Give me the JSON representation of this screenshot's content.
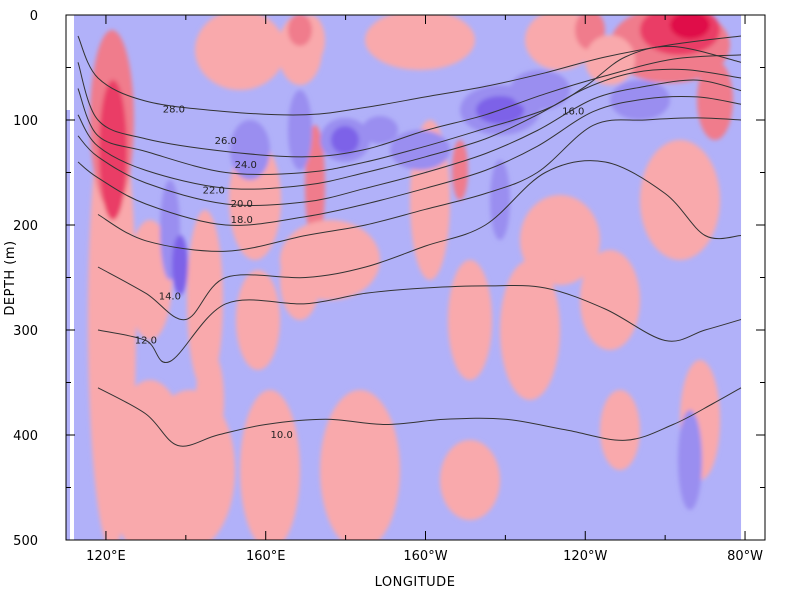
{
  "chart_data": {
    "type": "heatmap",
    "title": "",
    "xlabel": "LONGITUDE",
    "ylabel": "DEPTH (m)",
    "x_ticks": [
      {
        "label": "120°E",
        "lon": 120
      },
      {
        "label": "160°E",
        "lon": 160
      },
      {
        "label": "160°W",
        "lon": 200
      },
      {
        "label": "120°W",
        "lon": 240
      },
      {
        "label": "80°W",
        "lon": 280
      }
    ],
    "xlim": [
      110,
      285
    ],
    "y_ticks": [
      {
        "label": "0",
        "depth": 0
      },
      {
        "label": "100",
        "depth": 100
      },
      {
        "label": "200",
        "depth": 200
      },
      {
        "label": "300",
        "depth": 300
      },
      {
        "label": "400",
        "depth": 400
      },
      {
        "label": "500",
        "depth": 500
      }
    ],
    "ylim": [
      0,
      500
    ],
    "y_inverted": true,
    "data_lon_range": [
      112,
      279
    ],
    "colors": {
      "positive_light": "#f9a9ac",
      "positive_mid": "#f07c8c",
      "positive_strong": "#ea3e66",
      "positive_max": "#e0104a",
      "negative_light": "#b1b1f9",
      "negative_mid": "#9a8ef0",
      "negative_strong": "#7d62e8",
      "contour": "#333333"
    },
    "isotherms": [
      {
        "label": "28.0",
        "depths": [
          [
            113,
            20
          ],
          [
            118,
            60
          ],
          [
            130,
            82
          ],
          [
            150,
            92
          ],
          [
            170,
            95
          ],
          [
            185,
            88
          ],
          [
            200,
            78
          ],
          [
            215,
            68
          ],
          [
            230,
            55
          ],
          [
            245,
            40
          ],
          [
            262,
            28
          ],
          [
            279,
            20
          ]
        ],
        "label_at": [
          137,
          90
        ]
      },
      {
        "label": "26.0",
        "depths": [
          [
            113,
            45
          ],
          [
            118,
            100
          ],
          [
            130,
            118
          ],
          [
            150,
            130
          ],
          [
            170,
            135
          ],
          [
            185,
            128
          ],
          [
            200,
            110
          ],
          [
            215,
            95
          ],
          [
            230,
            75
          ],
          [
            245,
            58
          ],
          [
            262,
            42
          ],
          [
            279,
            38
          ]
        ],
        "label_at": [
          150,
          120
        ]
      },
      {
        "label": "24.0",
        "depths": [
          [
            113,
            70
          ],
          [
            118,
            115
          ],
          [
            130,
            130
          ],
          [
            150,
            150
          ],
          [
            170,
            150
          ],
          [
            185,
            140
          ],
          [
            200,
            125
          ],
          [
            215,
            108
          ],
          [
            230,
            90
          ],
          [
            240,
            68
          ],
          [
            250,
            40
          ],
          [
            262,
            30
          ],
          [
            279,
            45
          ]
        ],
        "label_at": [
          155,
          143
        ]
      },
      {
        "label": "22.0",
        "depths": [
          [
            113,
            95
          ],
          [
            118,
            125
          ],
          [
            130,
            148
          ],
          [
            150,
            165
          ],
          [
            170,
            162
          ],
          [
            185,
            150
          ],
          [
            200,
            135
          ],
          [
            215,
            118
          ],
          [
            228,
            95
          ],
          [
            240,
            70
          ],
          [
            252,
            55
          ],
          [
            265,
            52
          ],
          [
            279,
            60
          ]
        ],
        "label_at": [
          147,
          167
        ]
      },
      {
        "label": "20.0",
        "depths": [
          [
            113,
            115
          ],
          [
            118,
            135
          ],
          [
            130,
            160
          ],
          [
            150,
            180
          ],
          [
            170,
            178
          ],
          [
            185,
            165
          ],
          [
            200,
            150
          ],
          [
            215,
            132
          ],
          [
            228,
            110
          ],
          [
            242,
            80
          ],
          [
            255,
            68
          ],
          [
            268,
            62
          ],
          [
            279,
            72
          ]
        ],
        "label_at": [
          154,
          180
        ]
      },
      {
        "label": "18.0",
        "depths": [
          [
            113,
            140
          ],
          [
            118,
            155
          ],
          [
            130,
            180
          ],
          [
            150,
            200
          ],
          [
            170,
            192
          ],
          [
            185,
            180
          ],
          [
            200,
            165
          ],
          [
            215,
            148
          ],
          [
            228,
            125
          ],
          [
            242,
            92
          ],
          [
            255,
            80
          ],
          [
            268,
            78
          ],
          [
            279,
            85
          ]
        ],
        "label_at": [
          154,
          195
        ]
      },
      {
        "label": "16.0",
        "depths": [
          [
            118,
            190
          ],
          [
            130,
            215
          ],
          [
            150,
            225
          ],
          [
            170,
            210
          ],
          [
            185,
            200
          ],
          [
            200,
            185
          ],
          [
            215,
            170
          ],
          [
            228,
            150
          ],
          [
            242,
            105
          ],
          [
            255,
            100
          ],
          [
            268,
            98
          ],
          [
            279,
            100
          ]
        ],
        "label_at": [
          237,
          92
        ]
      },
      {
        "label": "14.0",
        "depths": [
          [
            118,
            240
          ],
          [
            130,
            265
          ],
          [
            140,
            290
          ],
          [
            150,
            250
          ],
          [
            170,
            250
          ],
          [
            185,
            240
          ],
          [
            200,
            220
          ],
          [
            215,
            200
          ],
          [
            230,
            150
          ],
          [
            245,
            140
          ],
          [
            260,
            170
          ],
          [
            270,
            210
          ],
          [
            279,
            210
          ]
        ],
        "label_at": [
          136,
          268
        ]
      },
      {
        "label": "12.0",
        "depths": [
          [
            118,
            300
          ],
          [
            130,
            310
          ],
          [
            136,
            330
          ],
          [
            150,
            275
          ],
          [
            170,
            275
          ],
          [
            185,
            265
          ],
          [
            200,
            260
          ],
          [
            215,
            258
          ],
          [
            230,
            260
          ],
          [
            245,
            280
          ],
          [
            260,
            310
          ],
          [
            270,
            300
          ],
          [
            279,
            290
          ]
        ],
        "label_at": [
          130,
          310
        ]
      },
      {
        "label": "10.0",
        "depths": [
          [
            118,
            355
          ],
          [
            130,
            380
          ],
          [
            138,
            410
          ],
          [
            148,
            400
          ],
          [
            160,
            390
          ],
          [
            175,
            385
          ],
          [
            190,
            390
          ],
          [
            205,
            385
          ],
          [
            220,
            385
          ],
          [
            235,
            395
          ],
          [
            250,
            405
          ],
          [
            262,
            390
          ],
          [
            272,
            370
          ],
          [
            279,
            355
          ]
        ],
        "label_at": [
          164,
          400
        ]
      }
    ]
  }
}
